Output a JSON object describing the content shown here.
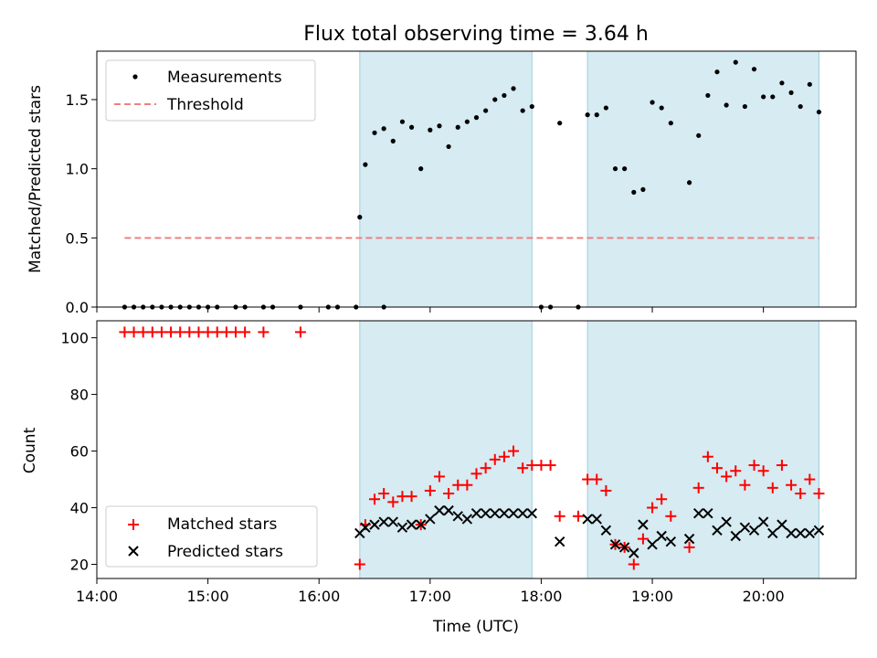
{
  "title": "Flux total observing time = 3.64 h",
  "chart_data": [
    {
      "type": "scatter",
      "panel": "top",
      "ylabel": "Matched/Predicted stars",
      "xlabel": "",
      "xlim": [
        "14:00",
        "20:50"
      ],
      "ylim": [
        0,
        1.85
      ],
      "yticks": [
        0.0,
        0.5,
        1.0,
        1.5
      ],
      "ytick_labels": [
        "0.0",
        "0.5",
        "1.0",
        "1.5"
      ],
      "legend_position": "top-left",
      "threshold": {
        "name": "Threshold",
        "value": 0.5,
        "x_range": [
          "14:15",
          "20:30"
        ],
        "color": "#f08080"
      },
      "shaded_ranges": [
        [
          "16:22",
          "17:55"
        ],
        [
          "18:25",
          "20:30"
        ]
      ],
      "series": [
        {
          "name": "Measurements",
          "color": "#000000",
          "points": [
            [
              "14:15",
              0
            ],
            [
              "14:20",
              0
            ],
            [
              "14:25",
              0
            ],
            [
              "14:30",
              0
            ],
            [
              "14:35",
              0
            ],
            [
              "14:40",
              0
            ],
            [
              "14:45",
              0
            ],
            [
              "14:50",
              0
            ],
            [
              "14:55",
              0
            ],
            [
              "15:00",
              0
            ],
            [
              "15:05",
              0
            ],
            [
              "15:15",
              0
            ],
            [
              "15:20",
              0
            ],
            [
              "15:30",
              0
            ],
            [
              "15:35",
              0
            ],
            [
              "15:50",
              0
            ],
            [
              "16:05",
              0
            ],
            [
              "16:10",
              0
            ],
            [
              "16:20",
              0
            ],
            [
              "16:35",
              0
            ],
            [
              "16:22",
              0.65
            ],
            [
              "16:25",
              1.03
            ],
            [
              "16:30",
              1.26
            ],
            [
              "16:35",
              1.29
            ],
            [
              "16:40",
              1.2
            ],
            [
              "16:45",
              1.34
            ],
            [
              "16:50",
              1.3
            ],
            [
              "16:55",
              1.0
            ],
            [
              "17:00",
              1.28
            ],
            [
              "17:05",
              1.31
            ],
            [
              "17:10",
              1.16
            ],
            [
              "17:15",
              1.3
            ],
            [
              "17:20",
              1.34
            ],
            [
              "17:25",
              1.37
            ],
            [
              "17:30",
              1.42
            ],
            [
              "17:35",
              1.5
            ],
            [
              "17:40",
              1.53
            ],
            [
              "17:45",
              1.58
            ],
            [
              "17:50",
              1.42
            ],
            [
              "17:55",
              1.45
            ],
            [
              "18:00",
              0
            ],
            [
              "18:05",
              0
            ],
            [
              "18:10",
              1.33
            ],
            [
              "18:20",
              0
            ],
            [
              "18:25",
              1.39
            ],
            [
              "18:30",
              1.39
            ],
            [
              "18:35",
              1.44
            ],
            [
              "18:40",
              1.0
            ],
            [
              "18:45",
              1.0
            ],
            [
              "18:50",
              0.83
            ],
            [
              "18:55",
              0.85
            ],
            [
              "19:00",
              1.48
            ],
            [
              "19:05",
              1.44
            ],
            [
              "19:10",
              1.33
            ],
            [
              "19:20",
              0.9
            ],
            [
              "19:25",
              1.24
            ],
            [
              "19:30",
              1.53
            ],
            [
              "19:35",
              1.7
            ],
            [
              "19:40",
              1.46
            ],
            [
              "19:45",
              1.77
            ],
            [
              "19:50",
              1.45
            ],
            [
              "19:55",
              1.72
            ],
            [
              "20:00",
              1.52
            ],
            [
              "20:05",
              1.52
            ],
            [
              "20:10",
              1.62
            ],
            [
              "20:15",
              1.55
            ],
            [
              "20:20",
              1.45
            ],
            [
              "20:25",
              1.61
            ],
            [
              "20:30",
              1.41
            ]
          ]
        }
      ]
    },
    {
      "type": "scatter",
      "panel": "bottom",
      "ylabel": "Count",
      "xlabel": "Time (UTC)",
      "xlim": [
        "14:00",
        "20:50"
      ],
      "ylim": [
        15,
        106
      ],
      "xticks": [
        "14:00",
        "15:00",
        "16:00",
        "17:00",
        "18:00",
        "19:00",
        "20:00"
      ],
      "yticks": [
        20,
        40,
        60,
        80,
        100
      ],
      "ytick_labels": [
        "20",
        "40",
        "60",
        "80",
        "100"
      ],
      "legend_position": "bottom-left",
      "shaded_ranges": [
        [
          "16:22",
          "17:55"
        ],
        [
          "18:25",
          "20:30"
        ]
      ],
      "series": [
        {
          "name": "Matched stars",
          "marker": "plus",
          "color": "#ff0000",
          "points": [
            [
              "14:15",
              102
            ],
            [
              "14:20",
              102
            ],
            [
              "14:25",
              102
            ],
            [
              "14:30",
              102
            ],
            [
              "14:35",
              102
            ],
            [
              "14:40",
              102
            ],
            [
              "14:45",
              102
            ],
            [
              "14:50",
              102
            ],
            [
              "14:55",
              102
            ],
            [
              "15:00",
              102
            ],
            [
              "15:05",
              102
            ],
            [
              "15:10",
              102
            ],
            [
              "15:15",
              102
            ],
            [
              "15:20",
              102
            ],
            [
              "15:30",
              102
            ],
            [
              "15:50",
              102
            ],
            [
              "16:22",
              20
            ],
            [
              "16:25",
              34
            ],
            [
              "16:30",
              43
            ],
            [
              "16:35",
              45
            ],
            [
              "16:40",
              42
            ],
            [
              "16:45",
              44
            ],
            [
              "16:50",
              44
            ],
            [
              "16:55",
              34
            ],
            [
              "17:00",
              46
            ],
            [
              "17:05",
              51
            ],
            [
              "17:10",
              45
            ],
            [
              "17:15",
              48
            ],
            [
              "17:20",
              48
            ],
            [
              "17:25",
              52
            ],
            [
              "17:30",
              54
            ],
            [
              "17:35",
              57
            ],
            [
              "17:40",
              58
            ],
            [
              "17:45",
              60
            ],
            [
              "17:50",
              54
            ],
            [
              "17:55",
              55
            ],
            [
              "18:00",
              55
            ],
            [
              "18:05",
              55
            ],
            [
              "18:10",
              37
            ],
            [
              "18:20",
              37
            ],
            [
              "18:25",
              50
            ],
            [
              "18:30",
              50
            ],
            [
              "18:35",
              46
            ],
            [
              "18:40",
              27
            ],
            [
              "18:45",
              26
            ],
            [
              "18:50",
              20
            ],
            [
              "18:55",
              29
            ],
            [
              "19:00",
              40
            ],
            [
              "19:05",
              43
            ],
            [
              "19:10",
              37
            ],
            [
              "19:20",
              26
            ],
            [
              "19:25",
              47
            ],
            [
              "19:30",
              58
            ],
            [
              "19:35",
              54
            ],
            [
              "19:40",
              51
            ],
            [
              "19:45",
              53
            ],
            [
              "19:50",
              48
            ],
            [
              "19:55",
              55
            ],
            [
              "20:00",
              53
            ],
            [
              "20:05",
              47
            ],
            [
              "20:10",
              55
            ],
            [
              "20:15",
              48
            ],
            [
              "20:20",
              45
            ],
            [
              "20:25",
              50
            ],
            [
              "20:30",
              45
            ]
          ]
        },
        {
          "name": "Predicted stars",
          "marker": "x",
          "color": "#000000",
          "points": [
            [
              "16:22",
              31
            ],
            [
              "16:25",
              33
            ],
            [
              "16:30",
              34
            ],
            [
              "16:35",
              35
            ],
            [
              "16:40",
              35
            ],
            [
              "16:45",
              33
            ],
            [
              "16:50",
              34
            ],
            [
              "16:55",
              34
            ],
            [
              "17:00",
              36
            ],
            [
              "17:05",
              39
            ],
            [
              "17:10",
              39
            ],
            [
              "17:15",
              37
            ],
            [
              "17:20",
              36
            ],
            [
              "17:25",
              38
            ],
            [
              "17:30",
              38
            ],
            [
              "17:35",
              38
            ],
            [
              "17:40",
              38
            ],
            [
              "17:45",
              38
            ],
            [
              "17:50",
              38
            ],
            [
              "17:55",
              38
            ],
            [
              "18:10",
              28
            ],
            [
              "18:25",
              36
            ],
            [
              "18:30",
              36
            ],
            [
              "18:35",
              32
            ],
            [
              "18:40",
              27
            ],
            [
              "18:45",
              26
            ],
            [
              "18:50",
              24
            ],
            [
              "18:55",
              34
            ],
            [
              "19:00",
              27
            ],
            [
              "19:05",
              30
            ],
            [
              "19:10",
              28
            ],
            [
              "19:20",
              29
            ],
            [
              "19:25",
              38
            ],
            [
              "19:30",
              38
            ],
            [
              "19:35",
              32
            ],
            [
              "19:40",
              35
            ],
            [
              "19:45",
              30
            ],
            [
              "19:50",
              33
            ],
            [
              "19:55",
              32
            ],
            [
              "20:00",
              35
            ],
            [
              "20:05",
              31
            ],
            [
              "20:10",
              34
            ],
            [
              "20:15",
              31
            ],
            [
              "20:20",
              31
            ],
            [
              "20:25",
              31
            ],
            [
              "20:30",
              32
            ]
          ]
        }
      ]
    }
  ]
}
